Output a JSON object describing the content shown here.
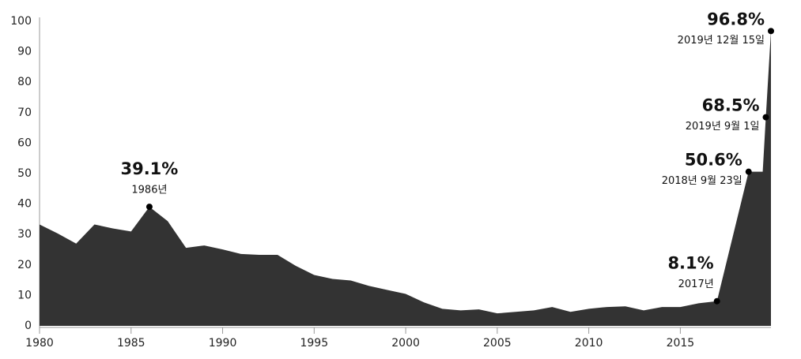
{
  "chart_data": {
    "type": "area",
    "color": "#333333",
    "x": [
      1980,
      1981,
      1982,
      1983,
      1984,
      1985,
      1986,
      1987,
      1988,
      1989,
      1990,
      1991,
      1992,
      1993,
      1994,
      1995,
      1996,
      1997,
      1998,
      1999,
      2000,
      2001,
      2002,
      2003,
      2004,
      2005,
      2006,
      2007,
      2008,
      2009,
      2010,
      2011,
      2012,
      2013,
      2014,
      2015,
      2016,
      2017,
      2018.73,
      2019.5,
      2019.67,
      2019.95
    ],
    "values": [
      33.3,
      30.3,
      27,
      33.3,
      32,
      31,
      39.1,
      34.4,
      25.6,
      26.4,
      25.1,
      23.6,
      23.3,
      23.3,
      19.7,
      16.7,
      15.4,
      14.9,
      13.1,
      11.8,
      10.5,
      7.7,
      5.6,
      5.1,
      5.4,
      4.1,
      4.6,
      5.1,
      6.2,
      4.6,
      5.6,
      6.2,
      6.4,
      5.1,
      6.2,
      6.2,
      7.4,
      8.1,
      50.6,
      50.6,
      68.5,
      96.8
    ],
    "value_labels": [
      null,
      null,
      null,
      null,
      null,
      null,
      "39.1%",
      null,
      null,
      null,
      null,
      null,
      null,
      null,
      null,
      null,
      null,
      null,
      null,
      null,
      null,
      null,
      null,
      null,
      null,
      null,
      null,
      null,
      null,
      null,
      null,
      null,
      null,
      null,
      null,
      null,
      null,
      "8.1%",
      "50.6%",
      null,
      "68.5%",
      "96.8%"
    ],
    "point_labels": [
      null,
      null,
      null,
      null,
      null,
      null,
      "1986년",
      null,
      null,
      null,
      null,
      null,
      null,
      null,
      null,
      null,
      null,
      null,
      null,
      null,
      null,
      null,
      null,
      null,
      null,
      null,
      null,
      null,
      null,
      null,
      null,
      null,
      null,
      null,
      null,
      null,
      null,
      "2017년",
      "2018년 9월 23일",
      null,
      "2019년 9월 1일",
      "2019년 12월 15일"
    ],
    "xlim": [
      1980,
      2019.95
    ],
    "xticks": [
      1980,
      1985,
      1990,
      1995,
      2000,
      2005,
      2010,
      2015
    ],
    "ylim": [
      0,
      100
    ],
    "yticks": [
      0,
      10,
      20,
      30,
      40,
      50,
      60,
      70,
      80,
      90,
      100
    ]
  }
}
